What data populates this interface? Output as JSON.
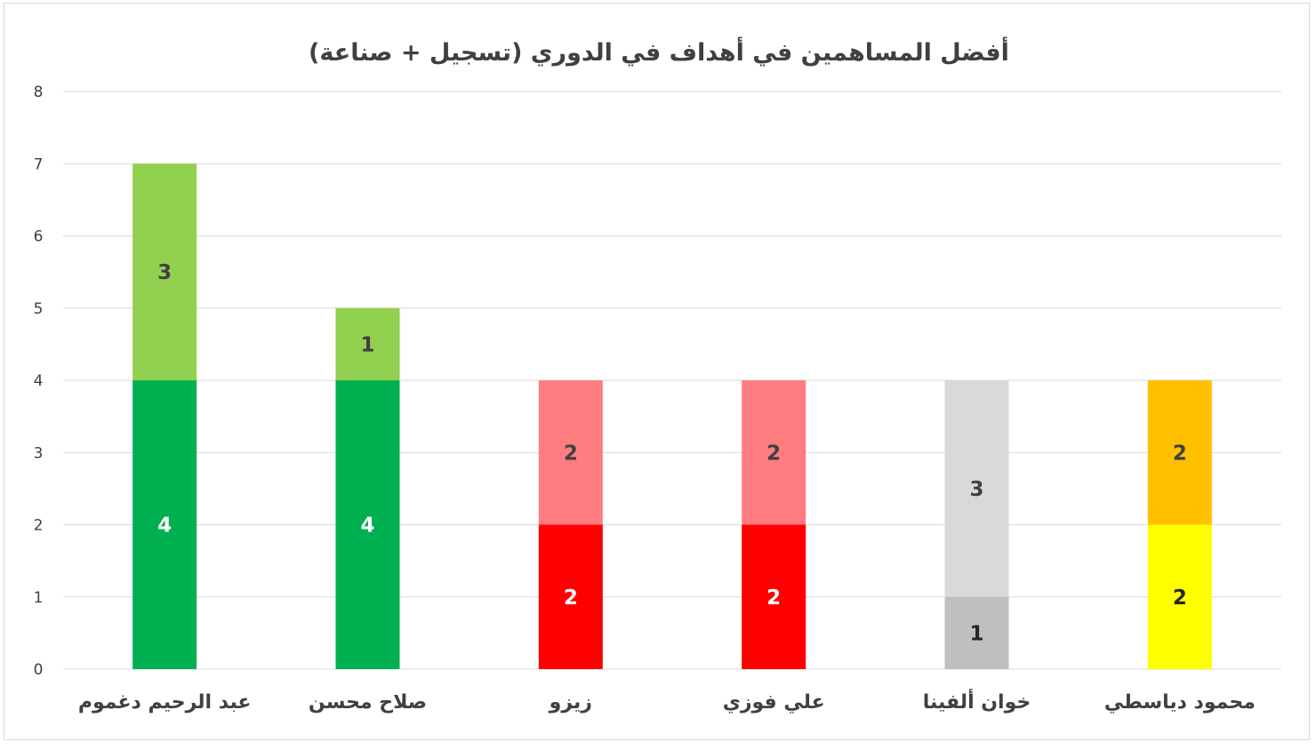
{
  "chart_data": {
    "type": "bar",
    "stacked": true,
    "title": "أفضل المساهمين في أهداف في الدوري (تسجيل + صناعة)",
    "categories": [
      "عبد الرحيم دغموم",
      "صلاح محسن",
      "زيزو",
      "علي فوزي",
      "خوان ألفينا",
      "محمود دياسطي"
    ],
    "ylim": [
      0,
      8
    ],
    "yticks": [
      "0",
      "1",
      "2",
      "3",
      "4",
      "5",
      "6",
      "7",
      "8"
    ],
    "grid": true,
    "legend": "none",
    "bars": [
      {
        "segments": [
          {
            "value": 4,
            "label": "4",
            "color": "#00b050",
            "label_color": "#ffffff"
          },
          {
            "value": 3,
            "label": "3",
            "color": "#92d050",
            "label_color": "#404040"
          }
        ]
      },
      {
        "segments": [
          {
            "value": 4,
            "label": "4",
            "color": "#00b050",
            "label_color": "#ffffff"
          },
          {
            "value": 1,
            "label": "1",
            "color": "#92d050",
            "label_color": "#404040"
          }
        ]
      },
      {
        "segments": [
          {
            "value": 2,
            "label": "2",
            "color": "#ff0000",
            "label_color": "#ffffff"
          },
          {
            "value": 2,
            "label": "2",
            "color": "#ff7c80",
            "label_color": "#404040"
          }
        ]
      },
      {
        "segments": [
          {
            "value": 2,
            "label": "2",
            "color": "#ff0000",
            "label_color": "#ffffff"
          },
          {
            "value": 2,
            "label": "2",
            "color": "#ff7c80",
            "label_color": "#404040"
          }
        ]
      },
      {
        "segments": [
          {
            "value": 1,
            "label": "1",
            "color": "#bfbfbf",
            "label_color": "#262626"
          },
          {
            "value": 3,
            "label": "3",
            "color": "#d9d9d9",
            "label_color": "#404040"
          }
        ]
      },
      {
        "segments": [
          {
            "value": 2,
            "label": "2",
            "color": "#ffff00",
            "label_color": "#262626"
          },
          {
            "value": 2,
            "label": "2",
            "color": "#ffc000",
            "label_color": "#404040"
          }
        ]
      }
    ],
    "colors": {
      "gridline": "#d9d9d9",
      "axis_text": "#404040",
      "title_text": "#404040"
    }
  }
}
